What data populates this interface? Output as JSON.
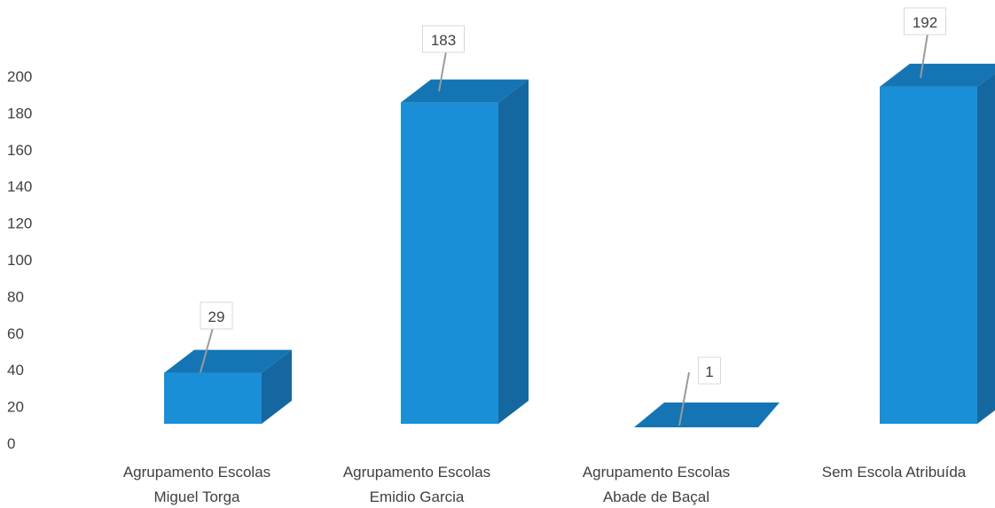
{
  "chart_data": {
    "type": "bar",
    "style": "3d-column",
    "categories": [
      [
        "Agrupamento Escolas",
        "Miguel Torga"
      ],
      [
        "Agrupamento Escolas",
        "Emidio Garcia"
      ],
      [
        "Agrupamento Escolas",
        "Abade de Baçal"
      ],
      [
        "Sem Escola Atribuída"
      ]
    ],
    "values": [
      29,
      183,
      1,
      192
    ],
    "data_labels": [
      "29",
      "183",
      "1",
      "192"
    ],
    "title": "",
    "xlabel": "",
    "ylabel": "",
    "ylim": [
      0,
      200
    ],
    "yticks": [
      0,
      20,
      40,
      60,
      80,
      100,
      120,
      140,
      160,
      180,
      200
    ],
    "grid": false,
    "legend": "none",
    "colors": {
      "front": "#1a8fd8",
      "top": "#1575b4",
      "side": "#15689f",
      "label_text": "#404040",
      "leader": "#9a9a9a"
    }
  }
}
